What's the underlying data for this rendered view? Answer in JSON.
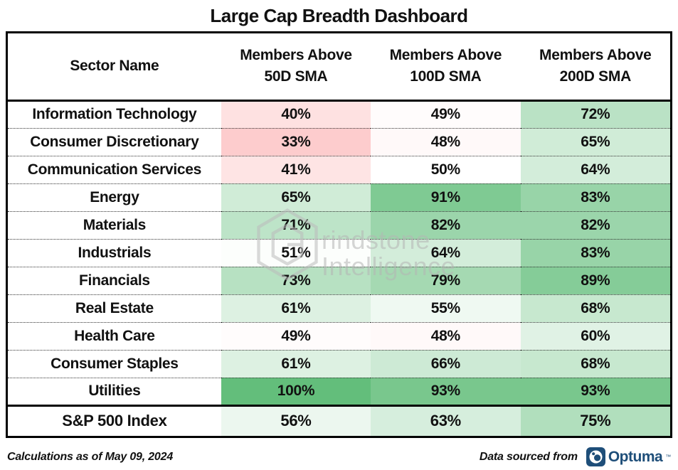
{
  "title": "Large Cap Breadth Dashboard",
  "table": {
    "columns": [
      {
        "label": "Sector Name"
      },
      {
        "line1": "Members Above",
        "line2": "50D SMA"
      },
      {
        "line1": "Members Above",
        "line2": "100D SMA"
      },
      {
        "line1": "Members Above",
        "line2": "200D SMA"
      }
    ],
    "summary": {
      "name": "S&P 500 Index"
    }
  },
  "chart_data": {
    "type": "heatmap",
    "title": "Large Cap Breadth Dashboard",
    "categories": [
      "Information Technology",
      "Consumer Discretionary",
      "Communication Services",
      "Energy",
      "Materials",
      "Industrials",
      "Financials",
      "Real Estate",
      "Health Care",
      "Consumer Staples",
      "Utilities"
    ],
    "series": [
      {
        "name": "Members Above 50D SMA",
        "values": [
          40,
          33,
          41,
          65,
          71,
          51,
          73,
          61,
          49,
          61,
          100
        ]
      },
      {
        "name": "Members Above 100D SMA",
        "values": [
          49,
          48,
          50,
          91,
          82,
          64,
          79,
          55,
          48,
          66,
          93
        ]
      },
      {
        "name": "Members Above 200D SMA",
        "values": [
          72,
          65,
          64,
          83,
          82,
          83,
          89,
          68,
          60,
          68,
          93
        ]
      }
    ],
    "summary_row": {
      "name": "S&P 500 Index",
      "values": [
        56,
        63,
        75
      ]
    },
    "value_format": "percent",
    "color_scale": {
      "min_value": 0,
      "min_color": "#F8696B",
      "mid_value": 50,
      "mid_color": "#FFFFFF",
      "max_value": 100,
      "max_color": "#63BE7B"
    }
  },
  "footer": {
    "left": "Calculations as of May 09, 2024",
    "source_label": "Data sourced from",
    "logo_text": "Optuma",
    "logo_mark": "™",
    "logo_color": "#1E4E79"
  },
  "watermark": {
    "line1": "rindstone",
    "line2": "Intelligence"
  }
}
